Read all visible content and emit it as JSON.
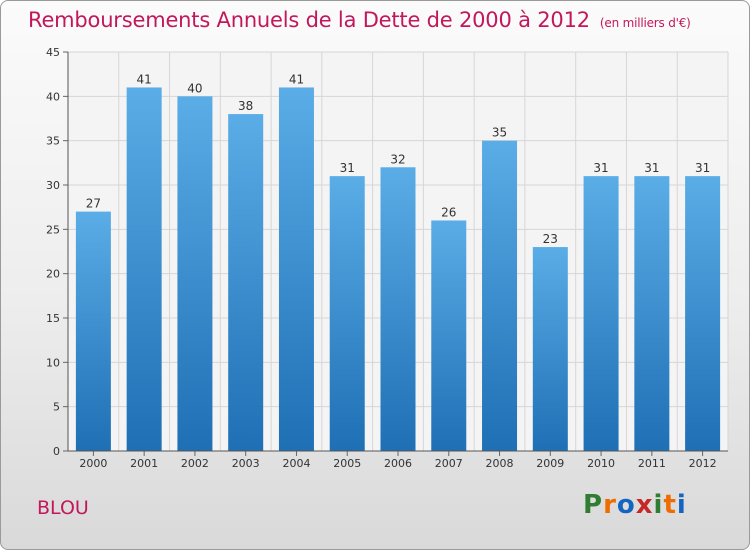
{
  "header": {
    "title": "Remboursements Annuels de la Dette de 2000 à 2012",
    "subtitle": "(en milliers d'€)"
  },
  "footer": {
    "commune": "BLOU",
    "logo": [
      "P",
      "r",
      "o",
      "x",
      "i",
      "t",
      "i"
    ]
  },
  "colors": {
    "title": "#c2185b",
    "bar_light": "#5aade6",
    "bar_dark": "#1f6fb5",
    "logo": [
      "#2e7d32",
      "#ef6c00",
      "#1565c0",
      "#c62828",
      "#2e7d32",
      "#ef6c00",
      "#1565c0"
    ]
  },
  "chart_data": {
    "type": "bar",
    "categories": [
      "2000",
      "2001",
      "2002",
      "2003",
      "2004",
      "2005",
      "2006",
      "2007",
      "2008",
      "2009",
      "2010",
      "2011",
      "2012"
    ],
    "values": [
      27,
      41,
      40,
      38,
      41,
      31,
      32,
      26,
      35,
      23,
      31,
      31,
      31
    ],
    "ylim": [
      0,
      45
    ],
    "yticks": [
      0,
      5,
      10,
      15,
      20,
      25,
      30,
      35,
      40,
      45
    ],
    "grid": true,
    "xlabel": "",
    "ylabel": ""
  }
}
